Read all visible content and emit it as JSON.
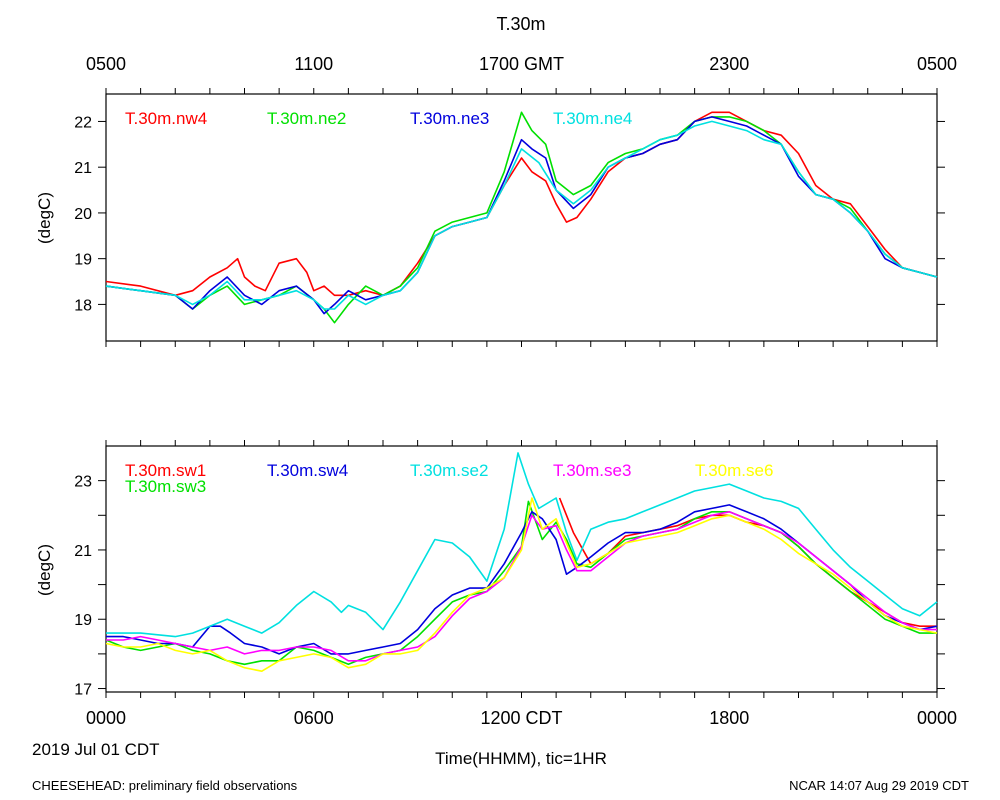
{
  "figure": {
    "title": "T.30m",
    "date_label": "2019 Jul 01 CDT",
    "xlabel": "Time(HHMM), tic=1HR",
    "footer_left": "CHEESEHEAD: preliminary field observations",
    "footer_right": "NCAR 14:07 Aug 29 2019 CDT"
  },
  "chart_data": [
    {
      "type": "line",
      "panel": "top",
      "ylabel": "(degC)",
      "xlim": [
        0,
        24
      ],
      "ylim": [
        17.2,
        22.6
      ],
      "yticks": [
        18,
        19,
        20,
        21,
        22
      ],
      "top_axis_ticks": [
        {
          "x": 0,
          "label": "0500"
        },
        {
          "x": 6,
          "label": "1100"
        },
        {
          "x": 12,
          "label": "1700 GMT"
        },
        {
          "x": 18,
          "label": "2300"
        },
        {
          "x": 24,
          "label": "0500"
        }
      ],
      "series": [
        {
          "name": "T.30m.nw4",
          "color": "#ff0000",
          "x": [
            0,
            1,
            2,
            2.5,
            3,
            3.5,
            3.8,
            4,
            4.3,
            4.6,
            5,
            5.5,
            5.8,
            6,
            6.3,
            6.6,
            7,
            7.5,
            8,
            8.5,
            9,
            9.5,
            10,
            10.5,
            11,
            11.5,
            12,
            12.3,
            12.7,
            13,
            13.3,
            13.6,
            14,
            14.5,
            15,
            15.5,
            16,
            16.5,
            17,
            17.5,
            18,
            18.5,
            19,
            19.5,
            20,
            20.5,
            21,
            21.5,
            22,
            22.5,
            23,
            23.5,
            24
          ],
          "y": [
            18.5,
            18.4,
            18.2,
            18.3,
            18.6,
            18.8,
            19.0,
            18.6,
            18.4,
            18.3,
            18.9,
            19.0,
            18.7,
            18.3,
            18.4,
            18.2,
            18.2,
            18.3,
            18.2,
            18.4,
            18.9,
            19.5,
            19.7,
            19.8,
            19.9,
            20.6,
            21.2,
            20.9,
            20.7,
            20.2,
            19.8,
            19.9,
            20.3,
            20.9,
            21.2,
            21.3,
            21.5,
            21.6,
            22.0,
            22.2,
            22.2,
            22.0,
            21.8,
            21.7,
            21.3,
            20.6,
            20.3,
            20.2,
            19.7,
            19.2,
            18.8,
            18.7,
            18.6
          ]
        },
        {
          "name": "T.30m.ne2",
          "color": "#00e000",
          "x": [
            0,
            1,
            2,
            2.5,
            3,
            3.5,
            4,
            4.5,
            5,
            5.5,
            6,
            6.3,
            6.6,
            7,
            7.5,
            8,
            8.5,
            9,
            9.5,
            10,
            10.5,
            11,
            11.5,
            12,
            12.3,
            12.7,
            13,
            13.5,
            14,
            14.5,
            15,
            15.5,
            16,
            16.5,
            17,
            17.5,
            18,
            18.5,
            19,
            19.5,
            20,
            20.5,
            21,
            21.5,
            22,
            22.5,
            23,
            23.5,
            24
          ],
          "y": [
            18.4,
            18.3,
            18.2,
            17.9,
            18.2,
            18.4,
            18.0,
            18.1,
            18.2,
            18.4,
            18.1,
            17.9,
            17.6,
            18.0,
            18.4,
            18.2,
            18.4,
            18.8,
            19.6,
            19.8,
            19.9,
            20.0,
            20.9,
            22.2,
            21.8,
            21.5,
            20.7,
            20.4,
            20.6,
            21.1,
            21.3,
            21.4,
            21.6,
            21.7,
            22.0,
            22.1,
            22.1,
            22.0,
            21.8,
            21.5,
            20.9,
            20.4,
            20.3,
            20.1,
            19.6,
            19.1,
            18.8,
            18.7,
            18.6
          ]
        },
        {
          "name": "T.30m.ne3",
          "color": "#0000dd",
          "x": [
            0,
            1,
            2,
            2.5,
            3,
            3.5,
            4,
            4.5,
            5,
            5.5,
            6,
            6.3,
            6.6,
            7,
            7.5,
            8,
            8.5,
            9,
            9.5,
            10,
            10.5,
            11,
            11.5,
            12,
            12.3,
            12.7,
            13,
            13.5,
            14,
            14.5,
            15,
            15.5,
            16,
            16.5,
            17,
            17.5,
            18,
            18.5,
            19,
            19.5,
            20,
            20.5,
            21,
            21.5,
            22,
            22.5,
            23,
            23.5,
            24
          ],
          "y": [
            18.4,
            18.3,
            18.2,
            17.9,
            18.3,
            18.6,
            18.2,
            18.0,
            18.3,
            18.4,
            18.1,
            17.8,
            18.0,
            18.3,
            18.1,
            18.2,
            18.3,
            18.7,
            19.5,
            19.7,
            19.8,
            19.9,
            20.7,
            21.6,
            21.4,
            21.2,
            20.5,
            20.1,
            20.4,
            21.0,
            21.2,
            21.3,
            21.5,
            21.6,
            22.0,
            22.1,
            22.0,
            21.9,
            21.7,
            21.5,
            20.8,
            20.4,
            20.3,
            20.0,
            19.6,
            19.0,
            18.8,
            18.7,
            18.6
          ]
        },
        {
          "name": "T.30m.ne4",
          "color": "#00e0e0",
          "x": [
            0,
            1,
            2,
            2.5,
            3,
            3.5,
            4,
            4.5,
            5,
            5.5,
            6,
            6.3,
            6.6,
            7,
            7.5,
            8,
            8.5,
            9,
            9.5,
            10,
            10.5,
            11,
            11.5,
            12,
            12.5,
            13,
            13.5,
            14,
            14.5,
            15,
            15.5,
            16,
            16.5,
            17,
            17.5,
            18,
            18.5,
            19,
            19.5,
            20,
            20.5,
            21,
            21.5,
            22,
            22.5,
            23,
            23.5,
            24
          ],
          "y": [
            18.4,
            18.3,
            18.2,
            18.0,
            18.2,
            18.5,
            18.1,
            18.1,
            18.2,
            18.3,
            18.1,
            17.9,
            17.9,
            18.2,
            18.0,
            18.2,
            18.3,
            18.7,
            19.5,
            19.7,
            19.8,
            19.9,
            20.6,
            21.4,
            21.1,
            20.5,
            20.2,
            20.5,
            21.0,
            21.2,
            21.4,
            21.6,
            21.7,
            21.9,
            22.0,
            21.9,
            21.8,
            21.6,
            21.5,
            20.9,
            20.4,
            20.3,
            20.0,
            19.6,
            19.1,
            18.8,
            18.7,
            18.6
          ]
        }
      ]
    },
    {
      "type": "line",
      "panel": "bottom",
      "ylabel": "(degC)",
      "xlim": [
        0,
        24
      ],
      "ylim": [
        16.9,
        24.0
      ],
      "yticks": [
        17,
        19,
        21,
        23
      ],
      "yticks_minor": [
        18,
        20,
        22
      ],
      "bottom_axis_ticks": [
        {
          "x": 0,
          "label": "0000"
        },
        {
          "x": 6,
          "label": "0600"
        },
        {
          "x": 12,
          "label": "1200 CDT"
        },
        {
          "x": 18,
          "label": "1800"
        },
        {
          "x": 24,
          "label": "0000"
        }
      ],
      "series": [
        {
          "name": "T.30m.sw1",
          "color": "#ff0000",
          "x": [
            13.1,
            13.5,
            14,
            14.5,
            15,
            15.5,
            16,
            16.5,
            17,
            17.5,
            18,
            18.5,
            19,
            19.5,
            20,
            20.5,
            21,
            21.5,
            22,
            22.5,
            23,
            23.5,
            24
          ],
          "y": [
            22.5,
            21.5,
            20.6,
            20.9,
            21.4,
            21.5,
            21.6,
            21.7,
            21.9,
            22.0,
            22.0,
            21.8,
            21.7,
            21.5,
            21.1,
            20.6,
            20.2,
            19.8,
            19.5,
            19.2,
            18.9,
            18.8,
            18.8
          ]
        },
        {
          "name": "T.30m.sw3",
          "color": "#00e000",
          "x": [
            0,
            0.5,
            1,
            1.5,
            2,
            2.5,
            3,
            3.5,
            4,
            4.5,
            5,
            5.5,
            6,
            6.5,
            7,
            7.5,
            8,
            8.5,
            9,
            9.5,
            10,
            10.5,
            11,
            11.5,
            12,
            12.2,
            12.6,
            13,
            13.3,
            13.6,
            14,
            14.5,
            15,
            15.5,
            16,
            16.5,
            17,
            17.5,
            18,
            18.5,
            19,
            19.5,
            20,
            20.5,
            21,
            21.5,
            22,
            22.5,
            23,
            23.5,
            24
          ],
          "y": [
            18.4,
            18.2,
            18.1,
            18.2,
            18.3,
            18.1,
            18.0,
            17.8,
            17.7,
            17.8,
            17.8,
            18.2,
            18.1,
            17.9,
            17.7,
            17.9,
            18.0,
            18.1,
            18.5,
            19.0,
            19.5,
            19.7,
            19.8,
            20.4,
            21.1,
            22.4,
            21.3,
            21.8,
            21.3,
            20.6,
            20.5,
            20.9,
            21.3,
            21.4,
            21.5,
            21.6,
            21.9,
            22.1,
            22.1,
            21.9,
            21.7,
            21.5,
            21.1,
            20.6,
            20.2,
            19.8,
            19.4,
            19.0,
            18.8,
            18.6,
            18.6
          ]
        },
        {
          "name": "T.30m.sw4",
          "color": "#0000dd",
          "x": [
            0,
            0.5,
            1,
            1.5,
            2,
            2.5,
            3,
            3.3,
            3.6,
            4,
            4.5,
            5,
            5.5,
            6,
            6.5,
            7,
            7.5,
            8,
            8.5,
            9,
            9.5,
            10,
            10.5,
            11,
            11.5,
            12,
            12.3,
            12.6,
            13,
            13.3,
            13.6,
            14,
            14.5,
            15,
            15.5,
            16,
            16.5,
            17,
            17.5,
            18,
            18.5,
            19,
            19.5,
            20,
            20.5,
            21,
            21.5,
            22,
            22.5,
            23,
            23.5,
            24
          ],
          "y": [
            18.5,
            18.5,
            18.4,
            18.3,
            18.3,
            18.2,
            18.8,
            18.8,
            18.6,
            18.3,
            18.2,
            18.0,
            18.2,
            18.3,
            18.0,
            18.0,
            18.1,
            18.2,
            18.3,
            18.7,
            19.3,
            19.7,
            19.9,
            19.9,
            20.6,
            21.5,
            22.1,
            21.9,
            21.3,
            20.3,
            20.5,
            20.8,
            21.2,
            21.5,
            21.5,
            21.6,
            21.8,
            22.1,
            22.2,
            22.3,
            22.1,
            21.9,
            21.6,
            21.2,
            20.8,
            20.4,
            20.0,
            19.5,
            19.1,
            18.9,
            18.7,
            18.8
          ]
        },
        {
          "name": "T.30m.se2",
          "color": "#00e0e0",
          "x": [
            0,
            1,
            2,
            2.5,
            3,
            3.5,
            4,
            4.5,
            5,
            5.5,
            6,
            6.5,
            6.8,
            7,
            7.5,
            8,
            8.5,
            9,
            9.5,
            10,
            10.5,
            11,
            11.5,
            11.9,
            12.2,
            12.5,
            13,
            13.3,
            13.6,
            14,
            14.5,
            15,
            15.5,
            16,
            16.5,
            17,
            17.5,
            18,
            18.5,
            19,
            19.5,
            20,
            20.5,
            21,
            21.5,
            22,
            22.5,
            23,
            23.5,
            24
          ],
          "y": [
            18.6,
            18.6,
            18.5,
            18.6,
            18.8,
            19.0,
            18.8,
            18.6,
            18.9,
            19.4,
            19.8,
            19.5,
            19.2,
            19.4,
            19.2,
            18.7,
            19.5,
            20.4,
            21.3,
            21.2,
            20.8,
            20.1,
            21.6,
            23.8,
            22.9,
            22.2,
            22.5,
            21.5,
            20.7,
            21.6,
            21.8,
            21.9,
            22.1,
            22.3,
            22.5,
            22.7,
            22.8,
            22.9,
            22.7,
            22.5,
            22.4,
            22.2,
            21.6,
            21.0,
            20.5,
            20.1,
            19.7,
            19.3,
            19.1,
            19.5
          ]
        },
        {
          "name": "T.30m.se3",
          "color": "#ff00ff",
          "x": [
            0,
            0.5,
            1,
            1.5,
            2,
            2.5,
            3,
            3.5,
            4,
            4.5,
            5,
            5.5,
            6,
            6.5,
            7,
            7.5,
            8,
            8.5,
            9,
            9.5,
            10,
            10.5,
            11,
            11.5,
            12,
            12.3,
            12.6,
            13,
            13.3,
            13.6,
            14,
            14.5,
            15,
            15.5,
            16,
            16.5,
            17,
            17.5,
            18,
            18.5,
            19,
            19.5,
            20,
            20.5,
            21,
            21.5,
            22,
            22.5,
            23,
            23.5,
            24
          ],
          "y": [
            18.4,
            18.4,
            18.5,
            18.4,
            18.3,
            18.2,
            18.1,
            18.2,
            18.0,
            18.1,
            18.1,
            18.2,
            18.2,
            18.1,
            17.8,
            17.8,
            18.0,
            18.1,
            18.2,
            18.5,
            19.1,
            19.6,
            19.8,
            20.2,
            21.1,
            22.0,
            21.6,
            21.7,
            21.0,
            20.4,
            20.4,
            20.8,
            21.2,
            21.4,
            21.5,
            21.6,
            21.8,
            22.0,
            22.1,
            21.9,
            21.7,
            21.5,
            21.2,
            20.8,
            20.4,
            20.0,
            19.6,
            19.2,
            18.9,
            18.7,
            18.7
          ]
        },
        {
          "name": "T.30m.se6",
          "color": "#ffff00",
          "x": [
            0,
            0.5,
            1,
            1.5,
            2,
            2.5,
            3,
            3.5,
            4,
            4.5,
            5,
            5.5,
            6,
            6.5,
            7,
            7.5,
            8,
            8.5,
            9,
            9.5,
            10,
            10.5,
            11,
            11.5,
            12,
            12.3,
            12.6,
            13,
            13.3,
            13.6,
            14,
            14.5,
            15,
            15.5,
            16,
            16.5,
            17,
            17.5,
            18,
            18.5,
            19,
            19.5,
            20,
            20.5,
            21,
            21.5,
            22,
            22.5,
            23,
            23.5,
            24
          ],
          "y": [
            18.3,
            18.2,
            18.2,
            18.3,
            18.1,
            18.0,
            18.1,
            17.8,
            17.6,
            17.5,
            17.8,
            17.9,
            18.0,
            17.9,
            17.6,
            17.7,
            18.0,
            18.0,
            18.1,
            18.6,
            19.2,
            19.7,
            19.9,
            20.2,
            21.0,
            22.5,
            21.6,
            21.9,
            21.2,
            20.5,
            20.6,
            20.9,
            21.2,
            21.3,
            21.4,
            21.5,
            21.7,
            21.9,
            22.0,
            21.8,
            21.6,
            21.3,
            20.9,
            20.6,
            20.3,
            19.9,
            19.5,
            19.1,
            18.8,
            18.7,
            18.6
          ]
        }
      ]
    }
  ]
}
